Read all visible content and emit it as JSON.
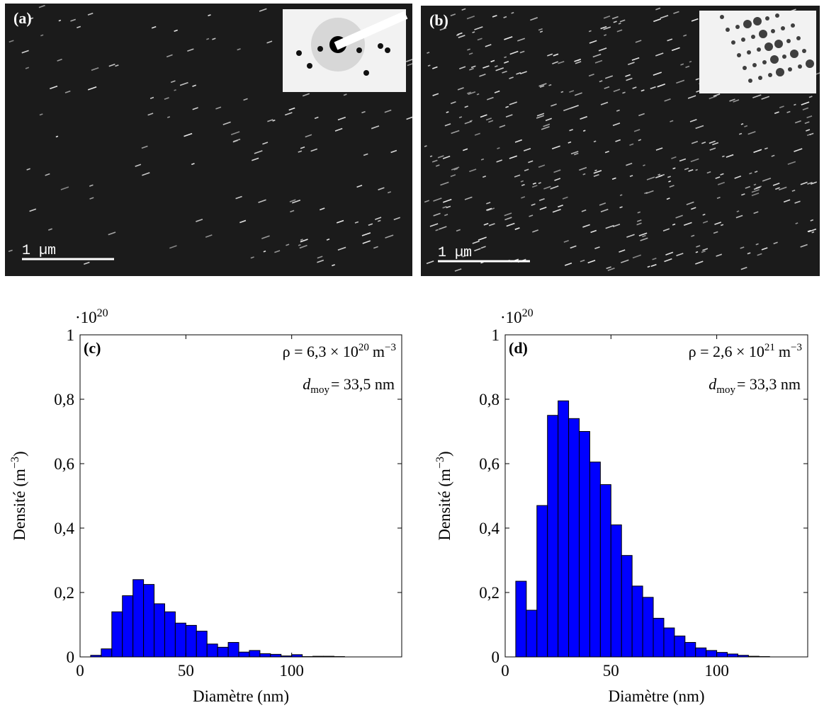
{
  "images": [
    {
      "label": "(a)",
      "scale_bar": "1 µm"
    },
    {
      "label": "(b)",
      "scale_bar": "1 µm"
    }
  ],
  "chart_data": [
    {
      "type": "histogram",
      "panel_label": "(c)",
      "multiplier": {
        "base": "·10",
        "exponent": "20"
      },
      "density": {
        "text": "ρ = 6,3 × 10",
        "exponent": "20",
        "unit": "m",
        "unit_exponent": "−3"
      },
      "mean": {
        "symbol": "d",
        "subscript": "moy",
        "text": "= 33,5 nm"
      },
      "x_label": "Diamètre (nm)",
      "y_label": {
        "text": "Densité (m",
        "exponent": "−3",
        "suffix": ")"
      },
      "color": "#0000ff",
      "bins": [
        5,
        10,
        15,
        20,
        25,
        30,
        35,
        40,
        45,
        50,
        55,
        60,
        65,
        70,
        75,
        80,
        85,
        90,
        95,
        100,
        105,
        110,
        115,
        120,
        125
      ],
      "counts": [
        0.005,
        0.025,
        0.14,
        0.19,
        0.24,
        0.225,
        0.165,
        0.14,
        0.105,
        0.098,
        0.08,
        0.04,
        0.03,
        0.045,
        0.015,
        0.02,
        0.01,
        0.008,
        0.003,
        0.007,
        0.001,
        0.002,
        0.002,
        0.001
      ],
      "xlim": [
        0,
        152
      ],
      "xticks": [
        0,
        50,
        100
      ],
      "ylim": [
        0,
        1
      ],
      "yticks": [
        0,
        {
          "value": 0.2,
          "label": "0,2"
        },
        {
          "value": 0.4,
          "label": "0,4"
        },
        {
          "value": 0.6,
          "label": "0,6"
        },
        {
          "value": 0.8,
          "label": "0,8"
        },
        1
      ]
    },
    {
      "type": "histogram",
      "panel_label": "(d)",
      "multiplier": {
        "base": "·10",
        "exponent": "20"
      },
      "density": {
        "text": "ρ = 2,6 × 10",
        "exponent": "21",
        "unit": "m",
        "unit_exponent": "−3"
      },
      "mean": {
        "symbol": "d",
        "subscript": "moy",
        "text": "= 33,3 nm"
      },
      "x_label": "Diamètre (nm)",
      "y_label": {
        "text": "Densité (m",
        "exponent": "−3",
        "suffix": ")"
      },
      "color": "#0000ff",
      "bins": [
        5,
        10,
        15,
        20,
        25,
        30,
        35,
        40,
        45,
        50,
        55,
        60,
        65,
        70,
        75,
        80,
        85,
        90,
        95,
        100,
        105,
        110,
        115,
        120,
        125
      ],
      "counts": [
        0.235,
        0.145,
        0.47,
        0.75,
        0.795,
        0.74,
        0.7,
        0.605,
        0.535,
        0.41,
        0.315,
        0.22,
        0.185,
        0.12,
        0.09,
        0.065,
        0.045,
        0.028,
        0.02,
        0.014,
        0.009,
        0.005,
        0.002,
        0.001
      ],
      "xlim": [
        0,
        143
      ],
      "xticks": [
        0,
        50,
        100
      ],
      "ylim": [
        0,
        1
      ],
      "yticks": [
        0,
        {
          "value": 0.2,
          "label": "0,2"
        },
        {
          "value": 0.4,
          "label": "0,4"
        },
        {
          "value": 0.6,
          "label": "0,6"
        },
        {
          "value": 0.8,
          "label": "0,8"
        },
        1
      ]
    }
  ]
}
